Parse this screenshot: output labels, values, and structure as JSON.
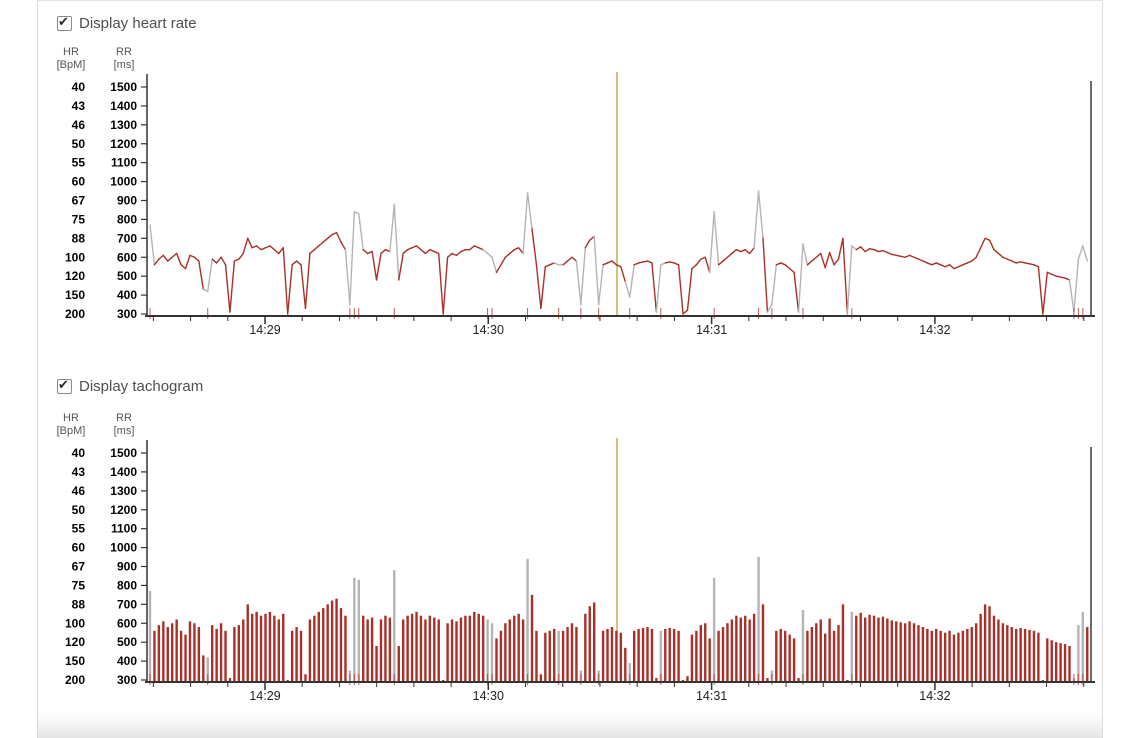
{
  "panel": {
    "heart_rate_toggle": {
      "label": "Display heart rate",
      "checked": true
    },
    "tachogram_toggle": {
      "label": "Display tachogram",
      "checked": true
    }
  },
  "colors": {
    "series_red": "#a83028",
    "artifact_gray": "#b4b4b4",
    "cursor_olive": "#ab9c1e",
    "end_marker": "#3a3a3a",
    "axis": "#333333",
    "event_mark_red": "#b5413a"
  },
  "chart_data": [
    {
      "type": "line",
      "title": "Display heart rate",
      "y_axis_left": {
        "label": "HR [BpM]",
        "header_line1": "HR",
        "header_line2": "[BpM]",
        "ticks": [
          "40",
          "43",
          "46",
          "50",
          "55",
          "60",
          "67",
          "75",
          "88",
          "100",
          "120",
          "150",
          "200"
        ]
      },
      "y_axis_right": {
        "label": "RR [ms]",
        "header_line1": "RR",
        "header_line2": "[ms]",
        "ticks": [
          "1500",
          "1400",
          "1300",
          "1200",
          "1100",
          "1000",
          "900",
          "800",
          "700",
          "600",
          "500",
          "400",
          "300"
        ]
      },
      "ylim_rr_ms": [
        300,
        1500
      ],
      "x_tick_labels": [
        "14:29",
        "14:30",
        "14:31",
        "14:32"
      ],
      "minor_tick_seconds": 10,
      "grid": false,
      "legend": "none",
      "series_name": "RR interval tachogram (line)",
      "series_color": "#a83028",
      "artifact_color": "#b4b4b4",
      "cursor": {
        "color": "#ab9c1e",
        "x_fraction": 0.497,
        "approx_time": "14:30:35"
      },
      "rr_ms": [
        770,
        560,
        590,
        610,
        580,
        600,
        620,
        560,
        540,
        610,
        600,
        580,
        430,
        420,
        590,
        570,
        600,
        560,
        310,
        580,
        590,
        620,
        700,
        650,
        660,
        640,
        650,
        660,
        640,
        620,
        650,
        300,
        560,
        580,
        560,
        330,
        620,
        640,
        660,
        680,
        700,
        720,
        730,
        680,
        640,
        350,
        840,
        830,
        640,
        620,
        630,
        480,
        620,
        640,
        630,
        880,
        480,
        620,
        640,
        650,
        660,
        640,
        620,
        640,
        630,
        620,
        300,
        600,
        620,
        610,
        630,
        640,
        640,
        660,
        650,
        640,
        620,
        600,
        520,
        560,
        600,
        620,
        640,
        650,
        620,
        940,
        750,
        560,
        330,
        550,
        560,
        570,
        560,
        560,
        580,
        600,
        580,
        350,
        650,
        690,
        710,
        350,
        560,
        570,
        580,
        560,
        550,
        470,
        390,
        560,
        570,
        575,
        580,
        570,
        310,
        560,
        570,
        575,
        570,
        560,
        300,
        320,
        540,
        560,
        590,
        600,
        520,
        840,
        560,
        580,
        600,
        620,
        640,
        630,
        640,
        620,
        650,
        950,
        700,
        310,
        350,
        560,
        570,
        560,
        540,
        520,
        310,
        670,
        560,
        580,
        600,
        620,
        545,
        625,
        560,
        590,
        700,
        300,
        660,
        640,
        655,
        630,
        645,
        640,
        630,
        635,
        625,
        615,
        610,
        605,
        600,
        610,
        600,
        590,
        580,
        570,
        560,
        570,
        560,
        550,
        560,
        540,
        550,
        560,
        570,
        580,
        600,
        650,
        700,
        690,
        640,
        620,
        600,
        590,
        580,
        570,
        575,
        570,
        565,
        560,
        550,
        300,
        520,
        510,
        500,
        495,
        490,
        480,
        310,
        590,
        660,
        580
      ],
      "artifact_indices": [
        0,
        13,
        45,
        46,
        47,
        55,
        76,
        77,
        85,
        92,
        97,
        101,
        108,
        115,
        127,
        137,
        140,
        147,
        158,
        208,
        209,
        210
      ]
    },
    {
      "type": "bar",
      "title": "Display tachogram",
      "y_axis_left": {
        "label": "HR [BpM]",
        "header_line1": "HR",
        "header_line2": "[BpM]",
        "ticks": [
          "40",
          "43",
          "46",
          "50",
          "55",
          "60",
          "67",
          "75",
          "88",
          "100",
          "120",
          "150",
          "200"
        ]
      },
      "y_axis_right": {
        "label": "RR [ms]",
        "header_line1": "RR",
        "header_line2": "[ms]",
        "ticks": [
          "1500",
          "1400",
          "1300",
          "1200",
          "1100",
          "1000",
          "900",
          "800",
          "700",
          "600",
          "500",
          "400",
          "300"
        ]
      },
      "ylim_rr_ms": [
        300,
        1500
      ],
      "x_tick_labels": [
        "14:29",
        "14:30",
        "14:31",
        "14:32"
      ],
      "minor_tick_seconds": 10,
      "grid": false,
      "legend": "none",
      "series_name": "RR interval tachogram (bars)",
      "series_color": "#a83028",
      "artifact_color": "#b4b4b4",
      "cursor": {
        "color": "#ab9c1e",
        "x_fraction": 0.497,
        "approx_time": "14:30:35"
      },
      "rr_ms": [
        770,
        560,
        590,
        610,
        580,
        600,
        620,
        560,
        540,
        610,
        600,
        580,
        430,
        420,
        590,
        570,
        600,
        560,
        310,
        580,
        590,
        620,
        700,
        650,
        660,
        640,
        650,
        660,
        640,
        620,
        650,
        300,
        560,
        580,
        560,
        330,
        620,
        640,
        660,
        680,
        700,
        720,
        730,
        680,
        640,
        350,
        840,
        830,
        640,
        620,
        630,
        480,
        620,
        640,
        630,
        880,
        480,
        620,
        640,
        650,
        660,
        640,
        620,
        640,
        630,
        620,
        300,
        600,
        620,
        610,
        630,
        640,
        640,
        660,
        650,
        640,
        620,
        600,
        520,
        560,
        600,
        620,
        640,
        650,
        620,
        940,
        750,
        560,
        330,
        550,
        560,
        570,
        560,
        560,
        580,
        600,
        580,
        350,
        650,
        690,
        710,
        350,
        560,
        570,
        580,
        560,
        550,
        470,
        390,
        560,
        570,
        575,
        580,
        570,
        310,
        560,
        570,
        575,
        570,
        560,
        300,
        320,
        540,
        560,
        590,
        600,
        520,
        840,
        560,
        580,
        600,
        620,
        640,
        630,
        640,
        620,
        650,
        950,
        700,
        310,
        350,
        560,
        570,
        560,
        540,
        520,
        310,
        670,
        560,
        580,
        600,
        620,
        545,
        625,
        560,
        590,
        700,
        300,
        660,
        640,
        655,
        630,
        645,
        640,
        630,
        635,
        625,
        615,
        610,
        605,
        600,
        610,
        600,
        590,
        580,
        570,
        560,
        570,
        560,
        550,
        560,
        540,
        550,
        560,
        570,
        580,
        600,
        650,
        700,
        690,
        640,
        620,
        600,
        590,
        580,
        570,
        575,
        570,
        565,
        560,
        550,
        300,
        520,
        510,
        500,
        495,
        490,
        480,
        310,
        590,
        660,
        580
      ],
      "artifact_indices": [
        0,
        13,
        45,
        46,
        47,
        55,
        76,
        77,
        85,
        92,
        97,
        101,
        108,
        115,
        127,
        137,
        140,
        147,
        158,
        208,
        209,
        210
      ]
    }
  ]
}
